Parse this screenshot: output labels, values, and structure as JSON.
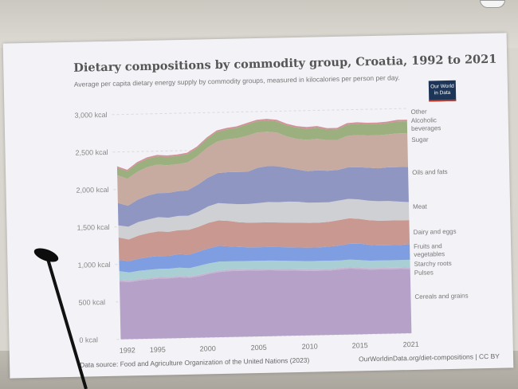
{
  "chart_data": {
    "type": "area",
    "stacked": true,
    "title": "Dietary compositions by commodity group, Croatia, 1992 to 2021",
    "subtitle": "Average per capita dietary energy supply by commodity groups, measured in kilocalories per person per day.",
    "ylim": [
      0,
      3000
    ],
    "y_ticks": [
      "0 kcal",
      "500 kcal",
      "1,000 kcal",
      "1,500 kcal",
      "2,000 kcal",
      "2,500 kcal",
      "3,000 kcal"
    ],
    "x_range": [
      1992,
      2021
    ],
    "x_ticks": [
      "1992",
      "1995",
      "2000",
      "2005",
      "2010",
      "2015",
      "2021"
    ],
    "x": [
      1992,
      1993,
      1994,
      1995,
      1996,
      1997,
      1998,
      1999,
      2000,
      2001,
      2002,
      2003,
      2004,
      2005,
      2006,
      2007,
      2008,
      2009,
      2010,
      2011,
      2012,
      2013,
      2014,
      2015,
      2016,
      2017,
      2018,
      2019,
      2020,
      2021
    ],
    "series": [
      {
        "name": "Cereals and grains",
        "color": "#b6a2c9",
        "values": [
          770,
          760,
          780,
          790,
          800,
          800,
          810,
          800,
          820,
          850,
          870,
          880,
          880,
          880,
          880,
          880,
          875,
          870,
          865,
          860,
          860,
          860,
          870,
          880,
          870,
          860,
          860,
          860,
          860,
          860
        ]
      },
      {
        "name": "Pulses",
        "color": "#c4b6d0",
        "values": [
          20,
          20,
          20,
          20,
          20,
          20,
          20,
          20,
          20,
          20,
          20,
          20,
          20,
          20,
          20,
          20,
          20,
          20,
          20,
          20,
          20,
          20,
          20,
          20,
          20,
          20,
          20,
          20,
          20,
          20
        ]
      },
      {
        "name": "Starchy roots",
        "color": "#a9cfd4",
        "values": [
          120,
          110,
          110,
          110,
          110,
          110,
          110,
          110,
          120,
          120,
          120,
          110,
          110,
          110,
          110,
          110,
          110,
          110,
          110,
          110,
          110,
          110,
          100,
          100,
          100,
          100,
          100,
          100,
          100,
          100
        ]
      },
      {
        "name": "Fruits and vegetables",
        "color": "#7f9ee2",
        "values": [
          150,
          150,
          160,
          170,
          170,
          170,
          180,
          180,
          190,
          200,
          210,
          200,
          190,
          180,
          180,
          180,
          180,
          180,
          180,
          180,
          180,
          190,
          200,
          210,
          220,
          210,
          200,
          200,
          200,
          210
        ]
      },
      {
        "name": "Dairy and eggs",
        "color": "#c99890",
        "values": [
          300,
          290,
          310,
          320,
          330,
          320,
          320,
          330,
          330,
          340,
          340,
          340,
          330,
          330,
          330,
          330,
          330,
          330,
          330,
          330,
          330,
          330,
          340,
          340,
          330,
          330,
          330,
          330,
          330,
          320
        ]
      },
      {
        "name": "Meat",
        "color": "#cfd0d3",
        "values": [
          160,
          170,
          180,
          180,
          190,
          190,
          190,
          190,
          200,
          220,
          230,
          230,
          240,
          250,
          260,
          270,
          270,
          280,
          280,
          270,
          270,
          260,
          260,
          260,
          260,
          260,
          260,
          260,
          250,
          240
        ]
      },
      {
        "name": "Oils and fats",
        "color": "#8f96c2",
        "values": [
          300,
          280,
          300,
          320,
          320,
          330,
          330,
          340,
          360,
          380,
          400,
          420,
          430,
          430,
          470,
          480,
          480,
          450,
          430,
          420,
          430,
          420,
          410,
          420,
          430,
          440,
          440,
          450,
          460,
          470
        ]
      },
      {
        "name": "Sugar",
        "color": "#c7aba1",
        "values": [
          370,
          360,
          370,
          380,
          380,
          370,
          360,
          370,
          380,
          400,
          420,
          440,
          450,
          480,
          470,
          460,
          450,
          420,
          410,
          420,
          420,
          410,
          400,
          420,
          430,
          430,
          440,
          440,
          450,
          450
        ]
      },
      {
        "name": "Alcoholic beverages",
        "color": "#9bb07e",
        "values": [
          100,
          100,
          110,
          110,
          110,
          110,
          110,
          110,
          110,
          120,
          130,
          130,
          140,
          150,
          150,
          150,
          150,
          150,
          150,
          150,
          150,
          140,
          140,
          150,
          150,
          150,
          150,
          150,
          160,
          160
        ]
      },
      {
        "name": "Other",
        "color": "#d48f98",
        "values": [
          20,
          20,
          20,
          20,
          20,
          20,
          20,
          20,
          20,
          20,
          20,
          20,
          20,
          20,
          20,
          20,
          20,
          20,
          20,
          20,
          20,
          20,
          20,
          20,
          20,
          20,
          20,
          20,
          20,
          20
        ]
      }
    ],
    "legend_placement": "right",
    "grid": true
  },
  "legend_labels": {
    "other": "Other",
    "alcohol_line1": "Alcoholic",
    "alcohol_line2": "beverages",
    "sugar": "Sugar",
    "oils": "Oils and fats",
    "meat": "Meat",
    "dairy": "Dairy and eggs",
    "fruits_line1": "Fruits and",
    "fruits_line2": "vegetables",
    "starchy": "Starchy roots",
    "pulses": "Pulses",
    "cereals": "Cereals and grains"
  },
  "logo": {
    "line1": "Our World",
    "line2": "in Data"
  },
  "footer": {
    "source": "Data source: Food and Agriculture Organization of the United Nations (2023)",
    "url": "OurWorldinData.org/diet-compositions | CC BY"
  }
}
